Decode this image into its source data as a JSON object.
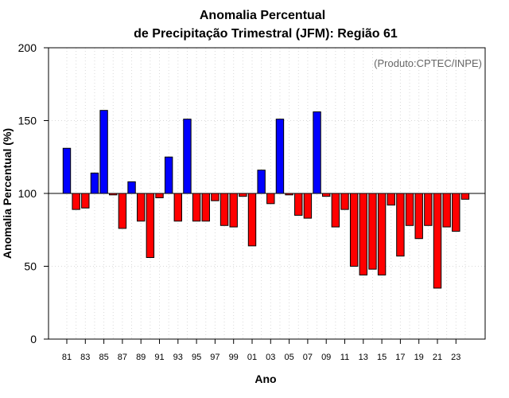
{
  "chart_data": {
    "type": "bar",
    "title_line1": "Anomalia Percentual",
    "title_line2": "de Precipitação Trimestral (JFM): Região 61",
    "xlabel": "Ano",
    "ylabel": "Anomalia Percentual (%)",
    "credit": "(Produto:CPTEC/INPE)",
    "baseline": 100,
    "ylim": [
      0,
      200
    ],
    "yticks": [
      0,
      50,
      100,
      150,
      200
    ],
    "xtick_labels": [
      "81",
      "83",
      "85",
      "87",
      "89",
      "91",
      "93",
      "95",
      "97",
      "99",
      "01",
      "03",
      "05",
      "07",
      "09",
      "11",
      "13",
      "15",
      "17",
      "19",
      "21",
      "23"
    ],
    "categories": [
      "1981",
      "1982",
      "1983",
      "1984",
      "1985",
      "1986",
      "1987",
      "1988",
      "1989",
      "1990",
      "1991",
      "1992",
      "1993",
      "1994",
      "1995",
      "1996",
      "1997",
      "1998",
      "1999",
      "2000",
      "2001",
      "2002",
      "2003",
      "2004",
      "2005",
      "2006",
      "2007",
      "2008",
      "2009",
      "2010",
      "2011",
      "2012",
      "2013",
      "2014",
      "2015",
      "2016",
      "2017",
      "2018",
      "2019",
      "2020",
      "2021",
      "2022",
      "2023",
      "2024"
    ],
    "values": [
      131,
      89,
      90,
      114,
      157,
      99,
      76,
      108,
      81,
      56,
      97,
      125,
      81,
      151,
      81,
      81,
      95,
      78,
      77,
      98,
      64,
      116,
      93,
      151,
      99,
      85,
      83,
      156,
      98,
      77,
      89,
      50,
      44,
      48,
      44,
      92,
      57,
      78,
      69,
      78,
      35,
      77,
      74,
      96
    ],
    "colors": {
      "above": "#0000ff",
      "below": "#ff0000",
      "edge": "#000000",
      "grid": "#d9d9d9"
    }
  }
}
